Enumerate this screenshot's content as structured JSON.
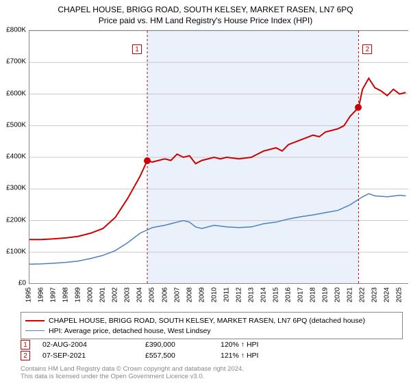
{
  "title": "CHAPEL HOUSE, BRIGG ROAD, SOUTH KELSEY, MARKET RASEN, LN7 6PQ",
  "subtitle": "Price paid vs. HM Land Registry's House Price Index (HPI)",
  "chart": {
    "type": "line",
    "xlim": [
      1995,
      2025.7
    ],
    "ylim": [
      0,
      800000
    ],
    "ytick_step": 100000,
    "ytick_labels": [
      "£0",
      "£100K",
      "£200K",
      "£300K",
      "£400K",
      "£500K",
      "£600K",
      "£700K",
      "£800K"
    ],
    "xticks": [
      1995,
      1996,
      1997,
      1998,
      1999,
      2000,
      2001,
      2002,
      2003,
      2004,
      2005,
      2006,
      2007,
      2008,
      2009,
      2010,
      2011,
      2012,
      2013,
      2014,
      2015,
      2016,
      2017,
      2018,
      2019,
      2020,
      2021,
      2022,
      2023,
      2024,
      2025
    ],
    "background_color": "#ffffff",
    "grid_color": "#c8c8c8",
    "shade_color": "#eaf1fa",
    "shade_from": 2004.59,
    "shade_to": 2021.68,
    "series": [
      {
        "name": "property",
        "label": "CHAPEL HOUSE, BRIGG ROAD, SOUTH KELSEY, MARKET RASEN, LN7 6PQ (detached house)",
        "color": "#cc0000",
        "line_width": 2,
        "points": [
          [
            1995,
            140000
          ],
          [
            1996,
            140000
          ],
          [
            1997,
            142000
          ],
          [
            1998,
            145000
          ],
          [
            1999,
            150000
          ],
          [
            2000,
            160000
          ],
          [
            2001,
            175000
          ],
          [
            2002,
            210000
          ],
          [
            2003,
            270000
          ],
          [
            2004,
            340000
          ],
          [
            2004.59,
            390000
          ],
          [
            2005,
            385000
          ],
          [
            2006,
            395000
          ],
          [
            2006.5,
            390000
          ],
          [
            2007,
            410000
          ],
          [
            2007.5,
            400000
          ],
          [
            2008,
            405000
          ],
          [
            2008.5,
            380000
          ],
          [
            2009,
            390000
          ],
          [
            2010,
            400000
          ],
          [
            2010.5,
            395000
          ],
          [
            2011,
            400000
          ],
          [
            2012,
            395000
          ],
          [
            2013,
            400000
          ],
          [
            2014,
            420000
          ],
          [
            2015,
            430000
          ],
          [
            2015.5,
            420000
          ],
          [
            2016,
            440000
          ],
          [
            2017,
            455000
          ],
          [
            2018,
            470000
          ],
          [
            2018.5,
            465000
          ],
          [
            2019,
            480000
          ],
          [
            2020,
            490000
          ],
          [
            2020.5,
            500000
          ],
          [
            2021,
            530000
          ],
          [
            2021.68,
            557500
          ],
          [
            2022,
            615000
          ],
          [
            2022.5,
            650000
          ],
          [
            2023,
            620000
          ],
          [
            2023.5,
            610000
          ],
          [
            2024,
            595000
          ],
          [
            2024.5,
            615000
          ],
          [
            2025,
            600000
          ],
          [
            2025.5,
            605000
          ]
        ]
      },
      {
        "name": "hpi",
        "label": "HPI: Average price, detached house, West Lindsey",
        "color": "#4a7fc4",
        "line_width": 1.5,
        "points": [
          [
            1995,
            62000
          ],
          [
            1996,
            63000
          ],
          [
            1997,
            65000
          ],
          [
            1998,
            68000
          ],
          [
            1999,
            72000
          ],
          [
            2000,
            80000
          ],
          [
            2001,
            90000
          ],
          [
            2002,
            105000
          ],
          [
            2003,
            130000
          ],
          [
            2004,
            160000
          ],
          [
            2005,
            178000
          ],
          [
            2006,
            185000
          ],
          [
            2007,
            195000
          ],
          [
            2007.5,
            200000
          ],
          [
            2008,
            195000
          ],
          [
            2008.5,
            180000
          ],
          [
            2009,
            175000
          ],
          [
            2010,
            185000
          ],
          [
            2011,
            180000
          ],
          [
            2012,
            178000
          ],
          [
            2013,
            180000
          ],
          [
            2014,
            190000
          ],
          [
            2015,
            195000
          ],
          [
            2016,
            205000
          ],
          [
            2017,
            212000
          ],
          [
            2018,
            218000
          ],
          [
            2019,
            225000
          ],
          [
            2020,
            232000
          ],
          [
            2021,
            250000
          ],
          [
            2022,
            275000
          ],
          [
            2022.5,
            285000
          ],
          [
            2023,
            278000
          ],
          [
            2024,
            275000
          ],
          [
            2025,
            280000
          ],
          [
            2025.5,
            278000
          ]
        ]
      }
    ],
    "sales": [
      {
        "n": "1",
        "date": "02-AUG-2004",
        "x": 2004.59,
        "price_val": 390000,
        "price": "£390,000",
        "hpi_delta": "120% ↑ HPI",
        "badge_offset": -22
      },
      {
        "n": "2",
        "date": "07-SEP-2021",
        "x": 2021.68,
        "price_val": 557500,
        "price": "£557,500",
        "hpi_delta": "121% ↑ HPI",
        "badge_offset": 6
      }
    ]
  },
  "legend": {
    "property_label": "CHAPEL HOUSE, BRIGG ROAD, SOUTH KELSEY, MARKET RASEN, LN7 6PQ (detached house)",
    "hpi_label": "HPI: Average price, detached house, West Lindsey"
  },
  "footer": {
    "line1": "Contains HM Land Registry data © Crown copyright and database right 2024.",
    "line2": "This data is licensed under the Open Government Licence v3.0."
  }
}
